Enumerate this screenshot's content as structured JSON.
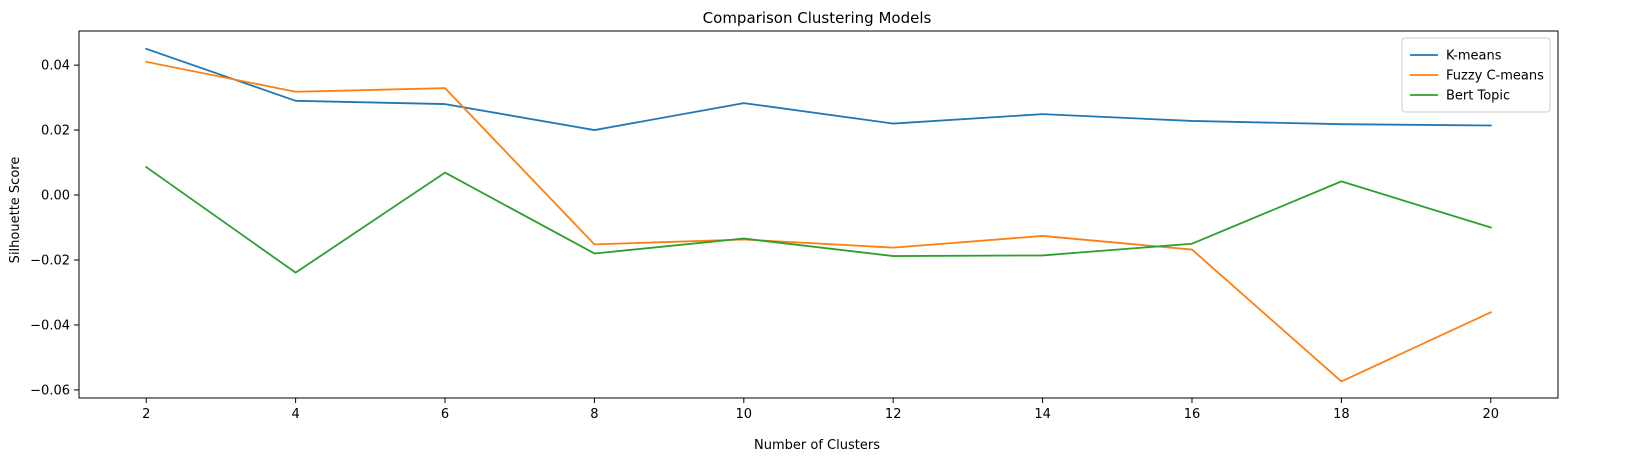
{
  "chart_data": {
    "type": "line",
    "title": "Comparison Clustering Models",
    "xlabel": "Number of Clusters",
    "ylabel": "Silhouette Score",
    "x": [
      2,
      4,
      6,
      8,
      10,
      12,
      14,
      16,
      18,
      20
    ],
    "xlim": [
      1.1,
      20.9
    ],
    "ylim": [
      -0.0625,
      0.0505
    ],
    "xticks": [
      2,
      4,
      6,
      8,
      10,
      12,
      14,
      16,
      18,
      20
    ],
    "yticks": [
      -0.06,
      -0.04,
      -0.02,
      0.0,
      0.02,
      0.04
    ],
    "ytick_labels": [
      "−0.06",
      "−0.04",
      "−0.02",
      "0.00",
      "0.02",
      "0.04"
    ],
    "grid": false,
    "legend_position": "top-right",
    "series": [
      {
        "name": "K-means",
        "color": "#1f77b4",
        "values": [
          0.045,
          0.029,
          0.028,
          0.02,
          0.0283,
          0.022,
          0.0249,
          0.0228,
          0.0218,
          0.0214
        ]
      },
      {
        "name": "Fuzzy C-means",
        "color": "#ff7f0e",
        "values": [
          0.041,
          0.0318,
          0.0329,
          -0.0152,
          -0.0137,
          -0.0162,
          -0.0126,
          -0.0168,
          -0.0574,
          -0.0361
        ]
      },
      {
        "name": "Bert Topic",
        "color": "#2ca02c",
        "values": [
          0.0086,
          -0.0239,
          0.0069,
          -0.018,
          -0.0134,
          -0.0188,
          -0.0186,
          -0.015,
          0.0042,
          -0.01
        ]
      }
    ]
  }
}
